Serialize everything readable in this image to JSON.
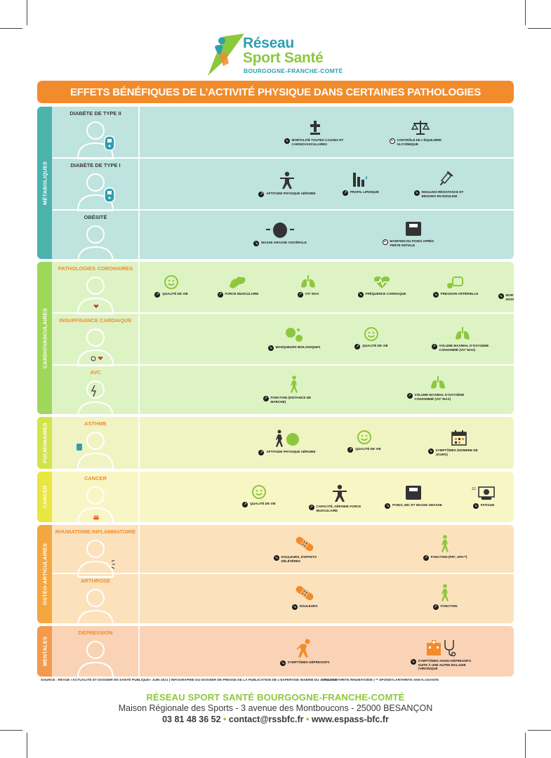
{
  "brand": {
    "line1": "Réseau",
    "line2": "Sport Santé",
    "line3": "BOURGOGNE-FRANCHE-COMTÉ"
  },
  "title": "EFFETS BÉNÉFIQUES DE L’ACTIVITÉ PHYSIQUE DANS CERTAINES PATHOLOGIES",
  "colors": {
    "orange": "#f28b2c",
    "metaboliques": "#4ab3ac",
    "cardio": "#9ed85a",
    "pulmonaires": "#d3e34a",
    "cancer": "#e9e541",
    "osteo": "#f3a740",
    "mentales": "#f39a4c"
  },
  "sections": [
    {
      "name": "MÉTABOLIQUES",
      "rows": [
        {
          "title": "DIABÈTE DE TYPE II",
          "items": [
            {
              "icon": "cross-icon",
              "dir": "down",
              "label": "MORTALITÉ TOUTES CAUSES ET CARDIOVASCULAIRES"
            },
            {
              "icon": "scale-icon",
              "dir": "equal",
              "label": "CONTRÔLE DE L’ÉQUILIBRE GLYCÉMIQUE"
            }
          ]
        },
        {
          "title": "DIABÈTE DE TYPE I",
          "items": [
            {
              "icon": "person-arms-icon",
              "dir": "up",
              "label": "APTITUDE PHYSIQUE AÉROBIE"
            },
            {
              "icon": "bars-drop-icon",
              "dir": "up",
              "label": "PROFIL LIPIDIQUE"
            },
            {
              "icon": "syringe-icon",
              "dir": "down",
              "label": "INSULINO-RÉSISTANCE ET BESOINS EN INSULINE"
            }
          ]
        },
        {
          "title": "OBÉSITÉ",
          "items": [
            {
              "icon": "belly-icon",
              "dir": "down",
              "label": "MASSE GRASSE VISCÉRALE"
            },
            {
              "icon": "weight-scale-icon",
              "dir": "equal",
              "label": "MAINTIEN DU POIDS APRÈS PERTE INITIALE"
            }
          ]
        }
      ]
    },
    {
      "name": "CARDIOVASCULAIRES",
      "rows": [
        {
          "title": "PATHOLOGIES CORONAIRES",
          "items": [
            {
              "icon": "smiley-icon",
              "dir": "up",
              "label": "QUALITÉ DE VIE"
            },
            {
              "icon": "muscle-icon",
              "dir": "up",
              "label": "FORCE MUSCULAIRE"
            },
            {
              "icon": "lungs-icon",
              "dir": "up",
              "label": "VO² MAX"
            },
            {
              "icon": "heart-pulse-icon",
              "dir": "down",
              "label": "FRÉQUENCE CARDIAQUE"
            },
            {
              "icon": "blood-pressure-icon",
              "dir": "down",
              "label": "PRESSION ARTÉRIELLE"
            },
            {
              "icon": "cross-hospital-icon",
              "dir": "down",
              "label": "MORTALITÉ ET RÉ-HOSPITALISATION"
            }
          ]
        },
        {
          "title": "INSUFFISANCE CARDIAQUE",
          "items": [
            {
              "icon": "bubbles-icon",
              "dir": "down",
              "label": "MARQUEURS BIOLOGIQUES"
            },
            {
              "icon": "smiley-icon",
              "dir": "up",
              "label": "QUALITÉ DE VIE"
            },
            {
              "icon": "lungs-icon",
              "dir": "up",
              "label": "VOLUME MAXIMAL D’OXYGÈNE CONSOMMÉ (VO² MAX)"
            }
          ]
        },
        {
          "title": "AVC",
          "items": [
            {
              "icon": "walker-icon",
              "dir": "up",
              "label": "FONCTION (DISTANCE DE MARCHE)"
            },
            {
              "icon": "lungs-icon",
              "dir": "up",
              "label": "VOLUME MAXIMAL D’OXYGÈNE CONSOMMÉ (VO² MAX)"
            }
          ]
        }
      ]
    },
    {
      "name": "PULMONAIRES",
      "rows": [
        {
          "title": "ASTHME",
          "items": [
            {
              "icon": "walker-ball-icon",
              "dir": "up",
              "label": "APTITUDE PHYSIQUE AÉROBIE"
            },
            {
              "icon": "smiley-icon",
              "dir": "up",
              "label": "QUALITÉ DE VIE"
            },
            {
              "icon": "calendar-icon",
              "dir": "down",
              "label": "SYMPTÔMES (NOMBRE DE JOURS)"
            }
          ]
        }
      ]
    },
    {
      "name": "CANCER",
      "rows": [
        {
          "title": "CANCER",
          "items": [
            {
              "icon": "smiley-icon",
              "dir": "up",
              "label": "QUALITÉ DE VIE"
            },
            {
              "icon": "person-arms-icon",
              "dir": "up",
              "label": "CAPACITÉ, AÉROBIE FORCE MUSCULAIRE"
            },
            {
              "icon": "weight-scale-icon",
              "dir": "down",
              "label": "POIDS, IMC ET MASSE GRASSE"
            },
            {
              "icon": "tired-person-icon",
              "dir": "down",
              "label": "FATIGUE"
            }
          ]
        }
      ]
    },
    {
      "name": "OSTÉO-ARTICULAIRES",
      "rows": [
        {
          "title": "RHUMATISME INFLAMMATOIRE",
          "items": [
            {
              "icon": "bandage-icon",
              "dir": "down",
              "label": "DOULEURS, D’EFFETS DÉLÉTÈRES"
            },
            {
              "icon": "walker-icon",
              "dir": "up",
              "label": "FONCTION (PR*, SPA**)"
            }
          ]
        },
        {
          "title": "ARTHROSE",
          "items": [
            {
              "icon": "bandage-icon",
              "dir": "down",
              "label": "DOULEURS"
            },
            {
              "icon": "walker-icon",
              "dir": "up",
              "label": "FONCTION"
            }
          ]
        }
      ]
    },
    {
      "name": "MENTALES",
      "rows": [
        {
          "title": "DÉPRESSION",
          "items": [
            {
              "icon": "sad-person-icon",
              "dir": "down",
              "label": "SYMPTÔMES DÉPRESSIFS"
            },
            {
              "icon": "hospital-stethoscope-icon",
              "dir": "down",
              "label": "SYMPTÔMES ANXIO-DÉPRESSIFS SUITE À UNE AUTRE MALADIE CHRONIQUE"
            }
          ]
        }
      ]
    }
  ],
  "source": "SOURCE : REVUE «ACTUALITÉ ET DOSSIER EN SANTÉ PUBLIQUE» JUIN 2021 | INFOGRAPHIE DU DOSSIER DE PRESSE DE LA PUBLICATION DE L’EXPERTISE INSERM DU 14/02/2019",
  "footnote": "* POLYARTHRITE RHUMATOÏDE | ** SPONDYLARTHRITE ANKYLOSANTE",
  "footer": {
    "title": "RÉSEAU SPORT SANTÉ BOURGOGNE-FRANCHE-COMTÉ",
    "address": "Maison Régionale des Sports - 3 avenue des Montboucons - 25000 BESANÇON",
    "phone": "03 81 48 36 52",
    "email": "contact@rssbfc.fr",
    "website": "www.espass-bfc.fr"
  }
}
